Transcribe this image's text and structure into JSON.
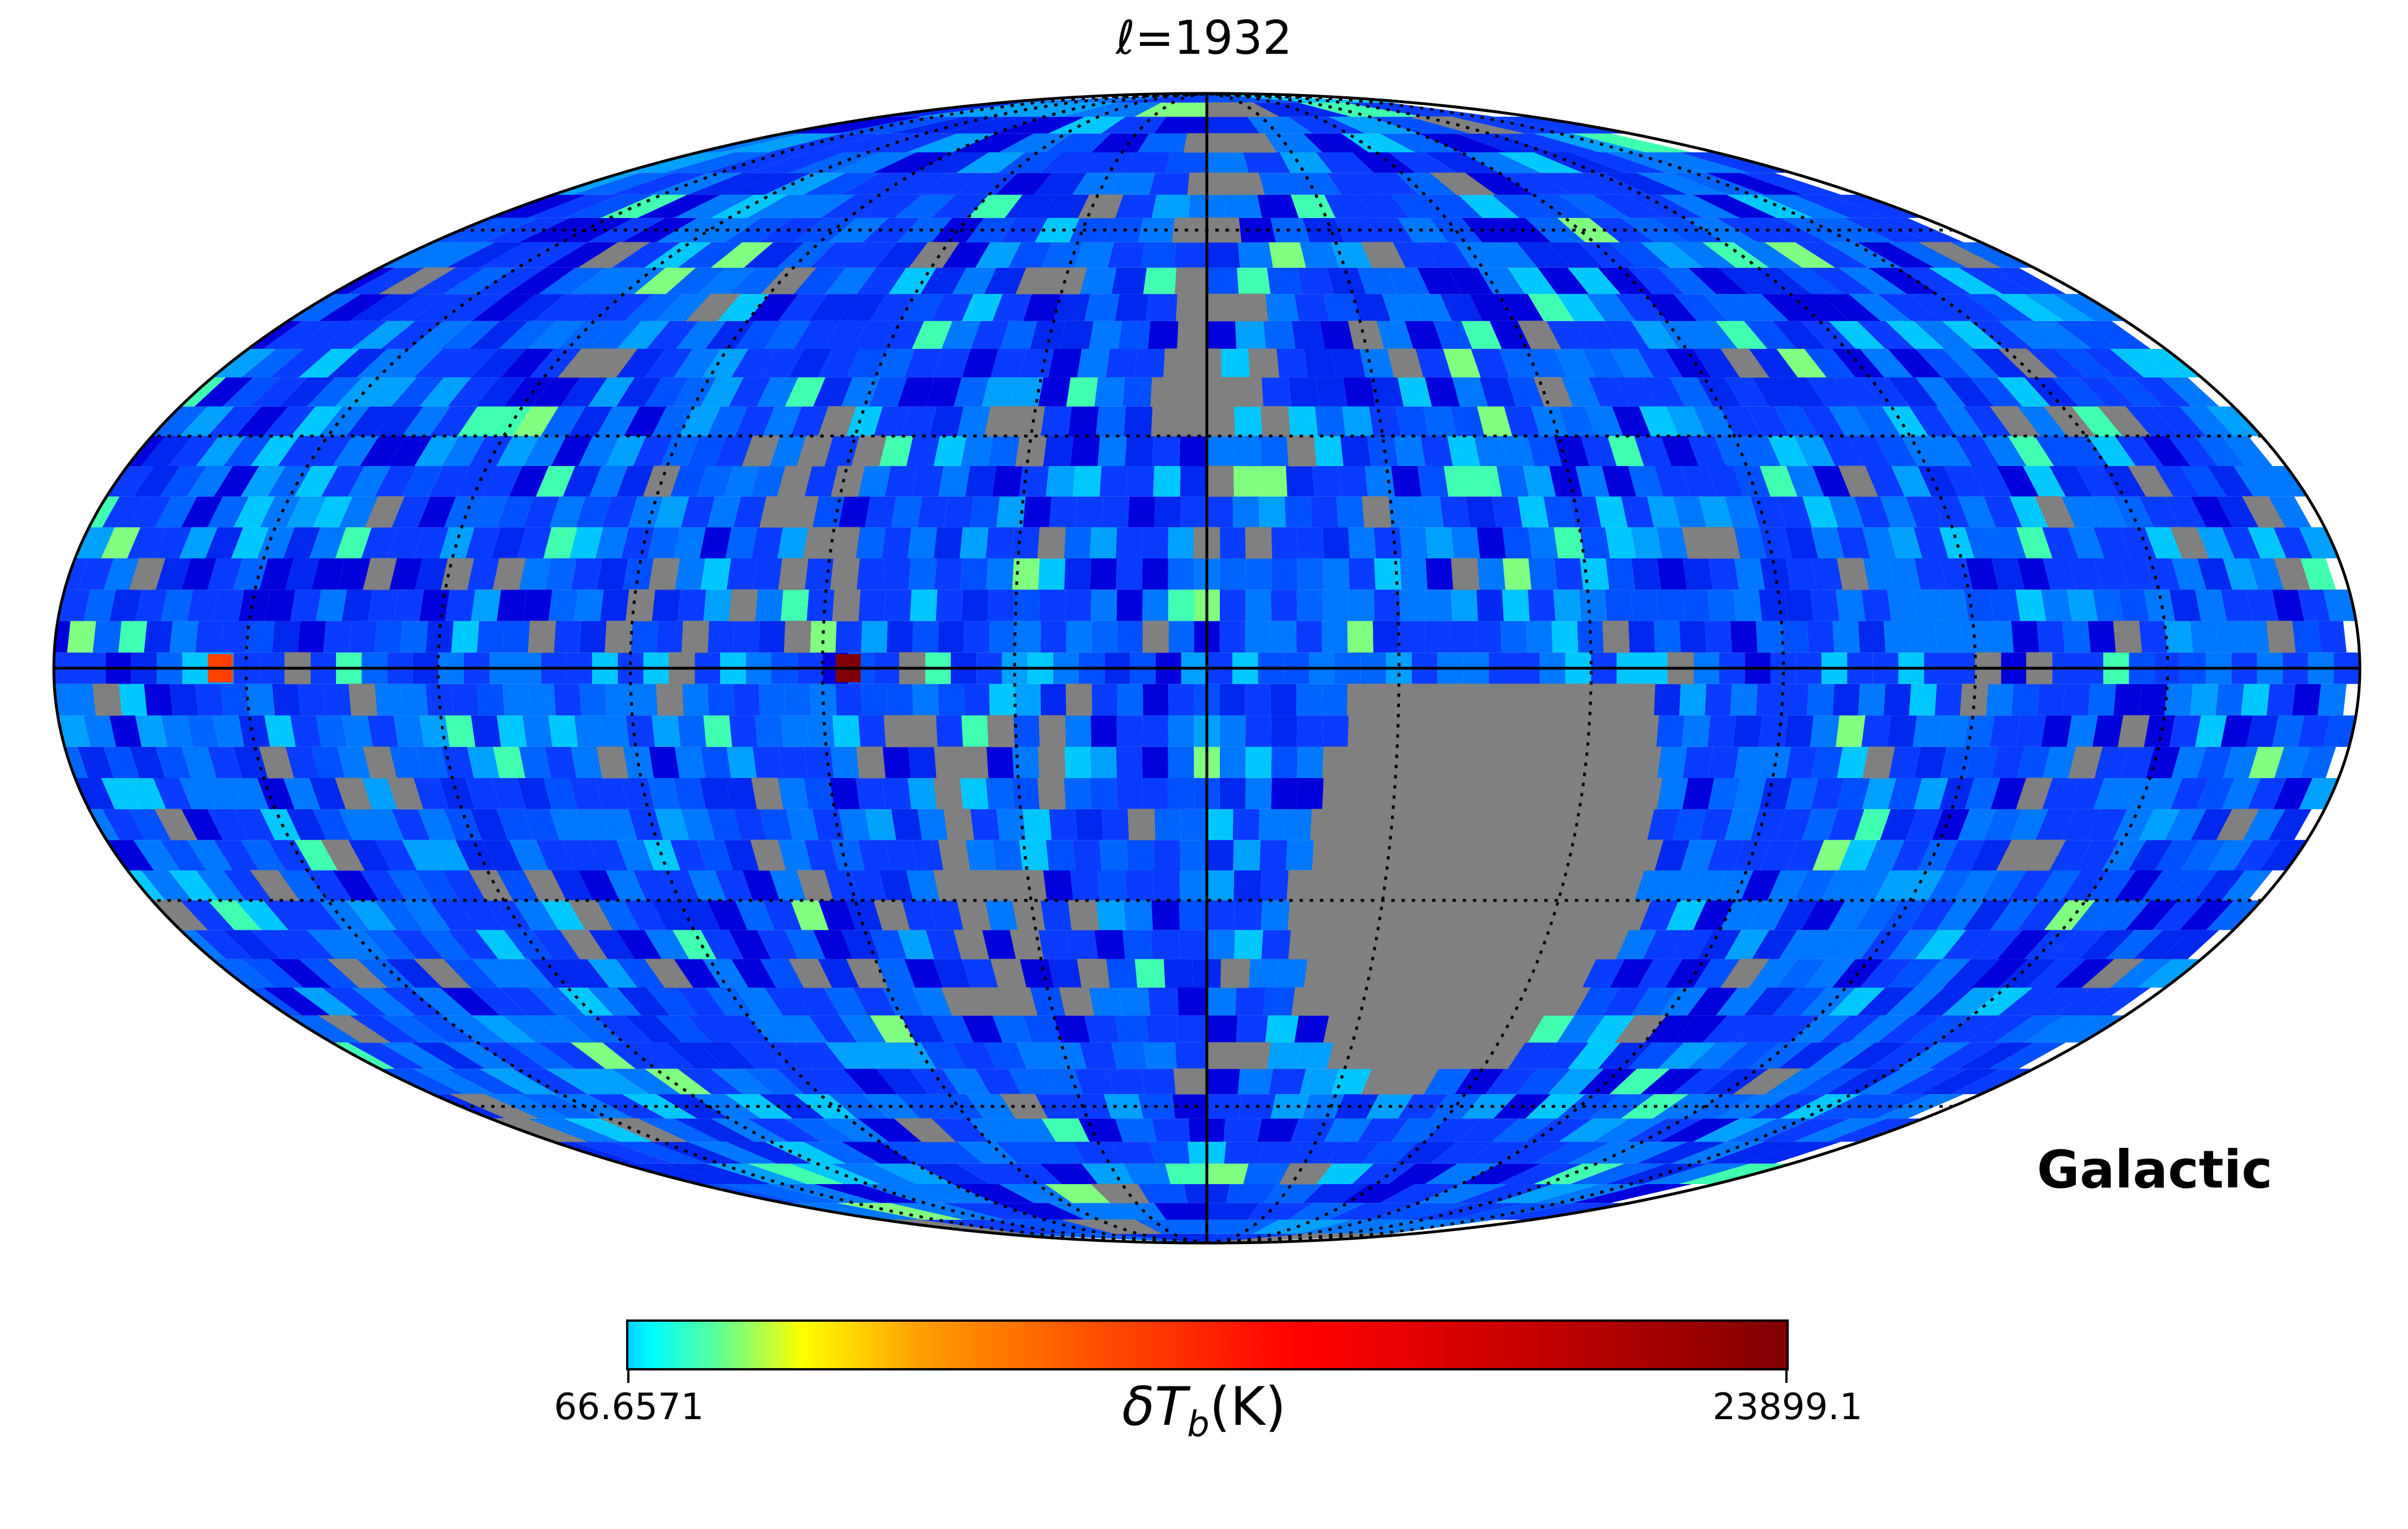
{
  "title": "ℓ=1932",
  "coord_system": "Galactic",
  "colorbar": {
    "min_label": "66.6571",
    "max_label": "23899.1",
    "label": "δT_b(K)",
    "label_main": "δT",
    "label_sub": "b",
    "label_unit": "(K)",
    "colormap": "jet",
    "min": 66.6571,
    "max": 23899.1
  },
  "projection": "Mollweide",
  "graticule": {
    "meridian_spacing_deg": 30,
    "parallel_spacing_deg": 30,
    "style": "dotted"
  },
  "colors": {
    "masked": "#808080",
    "outline": "#000000",
    "blue_deep": "#0000dd",
    "blue": "#0a3cff",
    "blue_light": "#0078ff",
    "cyan": "#00c8ff",
    "green": "#80ff80",
    "hot": "#ff4000",
    "max": "#800000"
  },
  "notable_pixels": [
    {
      "description": "hot",
      "lon_deg": 154,
      "lat_deg": 0,
      "color": "#ff4000"
    },
    {
      "description": "max",
      "lon_deg": 56,
      "lat_deg": 0,
      "color": "#800000"
    }
  ]
}
